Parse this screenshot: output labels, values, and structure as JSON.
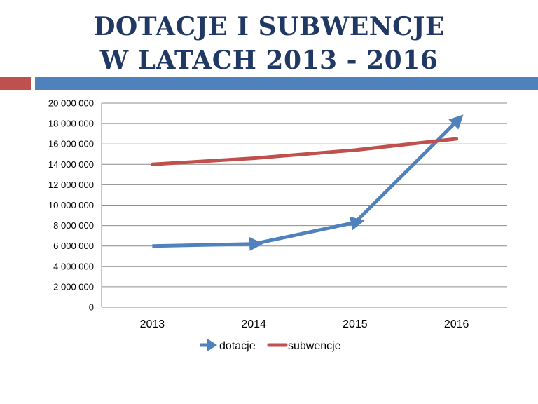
{
  "slide": {
    "title_line1": "DOTACJE I SUBWENCJE",
    "title_line2": "W LATACH 2013 - 2016"
  },
  "colors": {
    "title": "#1F3864",
    "accent_left": "#C0504D",
    "accent_right": "#4F81BD",
    "grid": "#8C8C8C"
  },
  "chart_data": {
    "type": "line",
    "title": "",
    "xlabel": "",
    "ylabel": "",
    "categories": [
      "2013",
      "2014",
      "2015",
      "2016"
    ],
    "ylim": [
      0,
      20000000
    ],
    "ytick_step": 2000000,
    "ytick_labels": [
      "0",
      "2 000 000",
      "4 000 000",
      "6 000 000",
      "8 000 000",
      "10 000 000",
      "12 000 000",
      "14 000 000",
      "16 000 000",
      "18 000 000",
      "20 000 000"
    ],
    "grid": true,
    "legend": "bottom",
    "series": [
      {
        "name": "dotacje",
        "values": [
          6000000,
          6200000,
          8300000,
          18200000
        ],
        "color": "#4F81BD",
        "marker": "arrow"
      },
      {
        "name": "subwencje",
        "values": [
          14000000,
          14600000,
          15400000,
          16500000
        ],
        "color": "#C0504D",
        "marker": "none"
      }
    ]
  }
}
